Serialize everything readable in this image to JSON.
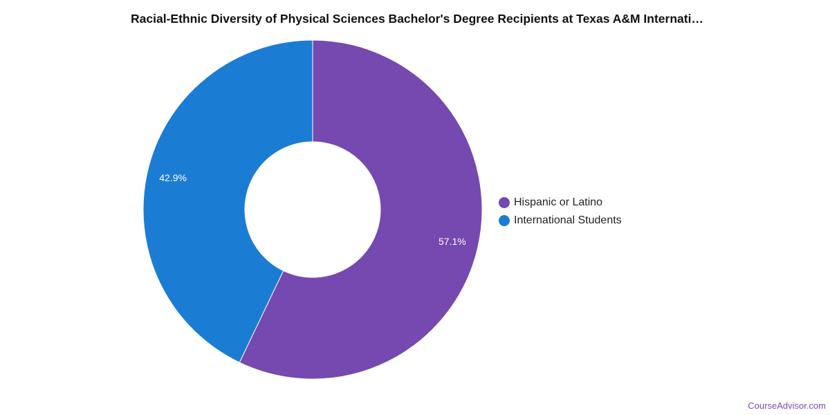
{
  "chart_data": {
    "type": "pie",
    "title": "Racial-Ethnic Diversity of Physical Sciences Bachelor's Degree Recipients at Texas A&M Internati…",
    "donut": true,
    "categories": [
      "Hispanic or Latino",
      "International Students"
    ],
    "values": [
      57.1,
      42.9
    ],
    "data_labels": [
      "57.1%",
      "42.9%"
    ],
    "colors": [
      "#7549b0",
      "#1b7cd3"
    ],
    "legend_position": "right"
  },
  "credit": "CourseAdvisor.com"
}
